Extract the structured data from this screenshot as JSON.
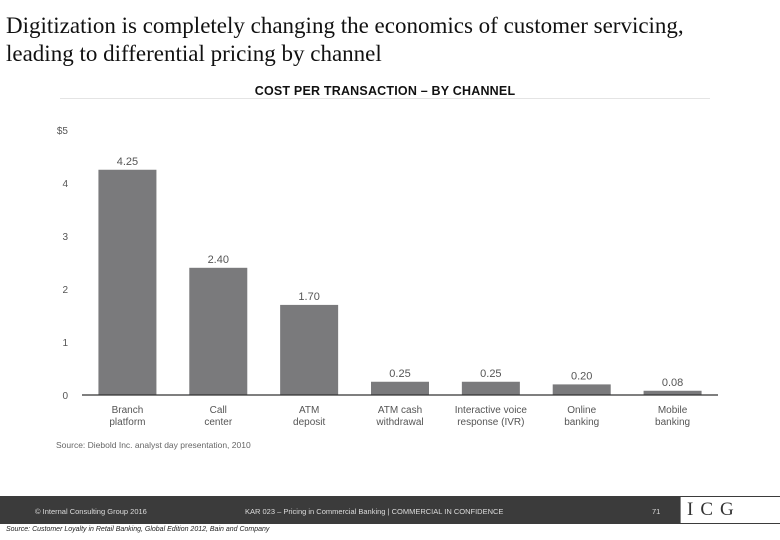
{
  "slide": {
    "title": "Digitization is completely changing the economics of customer servicing, leading to differential pricing by channel"
  },
  "chart_data": {
    "type": "bar",
    "title": "COST PER TRANSACTION – BY CHANNEL",
    "categories": [
      [
        "Branch",
        "platform"
      ],
      [
        "Call",
        "center"
      ],
      [
        "ATM",
        "deposit"
      ],
      [
        "ATM cash",
        "withdrawal"
      ],
      [
        "Interactive voice",
        "response (IVR)"
      ],
      [
        "Online",
        "banking"
      ],
      [
        "Mobile",
        "banking"
      ]
    ],
    "values": [
      4.25,
      2.4,
      1.7,
      0.25,
      0.25,
      0.2,
      0.08
    ],
    "value_labels": [
      "4.25",
      "2.40",
      "1.70",
      "0.25",
      "0.25",
      "0.20",
      "0.08"
    ],
    "yticks": [
      "0",
      "1",
      "2",
      "3",
      "4",
      "$5"
    ],
    "ylim": [
      0,
      5
    ],
    "xlabel": "",
    "ylabel": "",
    "grid": false,
    "bar_color": "#7a7a7c",
    "source": "Source: Diebold Inc. analyst day presentation, 2010"
  },
  "footer": {
    "left": "© Internal Consulting Group 2016",
    "middle": "KAR 023 – Pricing in Commercial Banking | COMMERCIAL IN CONFIDENCE",
    "page": "71",
    "logo": "ICG"
  },
  "source_bottom": "Source: Customer Loyalty in Retail Banking, Global Edition 2012, Bain and Company"
}
